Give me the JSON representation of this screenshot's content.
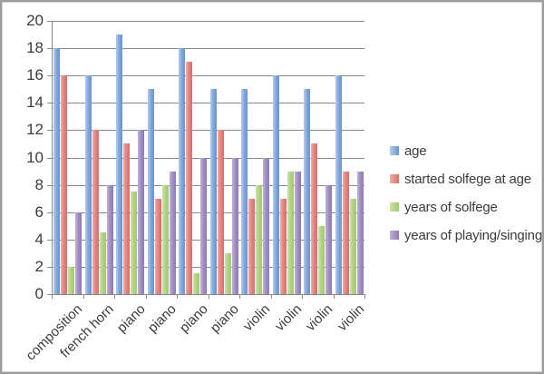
{
  "frame": {
    "background": "#ffffff",
    "border_color": "#9c9c9c",
    "axis_color": "#8a8a8a",
    "text_color": "#3c3c3c"
  },
  "chart_data": {
    "type": "bar",
    "title": "",
    "xlabel": "",
    "ylabel": "",
    "categories": [
      "composition",
      "french horn",
      "piano",
      "piano",
      "piano",
      "piano",
      "violin",
      "violin",
      "violin",
      "violin"
    ],
    "series": [
      {
        "name": "age",
        "color": "#7da3d9",
        "color_light": "#b3ccec",
        "color_dark": "#6b94cf",
        "values": [
          18,
          16,
          19,
          15,
          18,
          15,
          15,
          16,
          15,
          16
        ]
      },
      {
        "name": "started solfege at age",
        "color": "#e0807c",
        "color_light": "#f0aca9",
        "color_dark": "#d5706c",
        "values": [
          16,
          12,
          11,
          7,
          17,
          12,
          7,
          7,
          11,
          9
        ]
      },
      {
        "name": "years of solfege",
        "color": "#afd07f",
        "color_light": "#cde2a8",
        "color_dark": "#a3c96f",
        "values": [
          2,
          4.5,
          7.5,
          8,
          1.5,
          3,
          8,
          9,
          5,
          7
        ]
      },
      {
        "name": "years of playing/singing",
        "color": "#9d8bc0",
        "color_light": "#bfb2d6",
        "color_dark": "#8f7cb5",
        "values": [
          6,
          8,
          12,
          9,
          10,
          10,
          10,
          9,
          8,
          9
        ]
      }
    ],
    "ylim": [
      0,
      20
    ],
    "ytick_step": 2,
    "yticks": [
      "0",
      "2",
      "4",
      "6",
      "8",
      "10",
      "12",
      "14",
      "16",
      "18",
      "20"
    ],
    "grid": true,
    "legend_position": "right"
  }
}
